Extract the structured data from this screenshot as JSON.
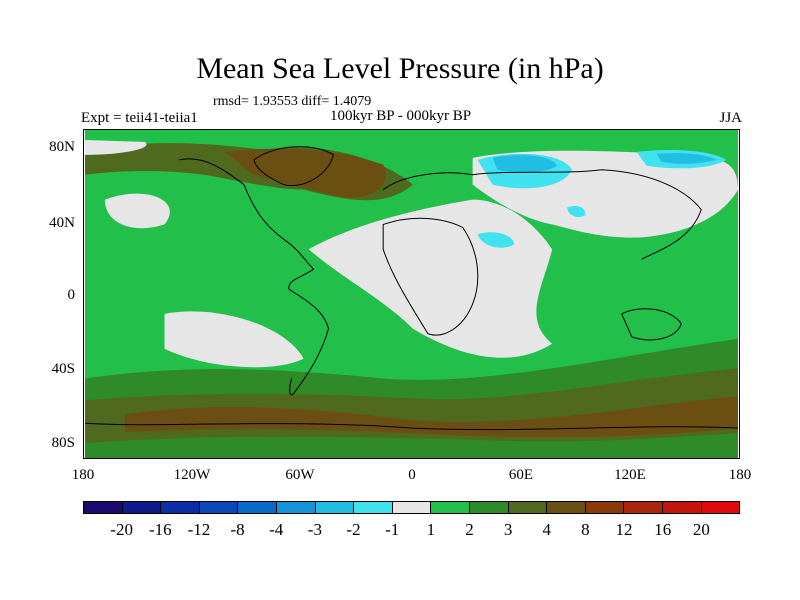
{
  "title": "Mean Sea Level Pressure (in hPa)",
  "stats": "rmsd= 1.93553 diff= 1.4079",
  "experiment": "Expt = teii41-teiia1",
  "period": "100kyr BP - 000kyr BP",
  "season": "JJA",
  "lat_labels": [
    "80N",
    "40N",
    "0",
    "40S",
    "80S"
  ],
  "lon_labels": [
    "180",
    "120W",
    "60W",
    "0",
    "60E",
    "120E",
    "180"
  ],
  "colorbar": {
    "labels": [
      "-20",
      "-16",
      "-12",
      "-8",
      "-4",
      "-3",
      "-2",
      "-1",
      "1",
      "2",
      "3",
      "4",
      "8",
      "12",
      "16",
      "20"
    ],
    "colors": [
      "#1a0a6e",
      "#101a8c",
      "#0a2ea6",
      "#0a48b8",
      "#0a6ac8",
      "#1493d6",
      "#22bde2",
      "#3fe2ee",
      "#e6e6e6",
      "#22c04a",
      "#2f8a2a",
      "#4f6a1e",
      "#6b4f12",
      "#8a3a0a",
      "#aa260a",
      "#c4150a",
      "#e00a0a"
    ]
  },
  "palette": {
    "land_outline": "#000000",
    "neutral": "#e6e6e6",
    "green": "#22c04a",
    "dark_green": "#2f8a2a",
    "olive": "#4f6a1e",
    "brown": "#6b4f12",
    "cyan": "#3fe2ee",
    "light_blue": "#22bde2"
  }
}
